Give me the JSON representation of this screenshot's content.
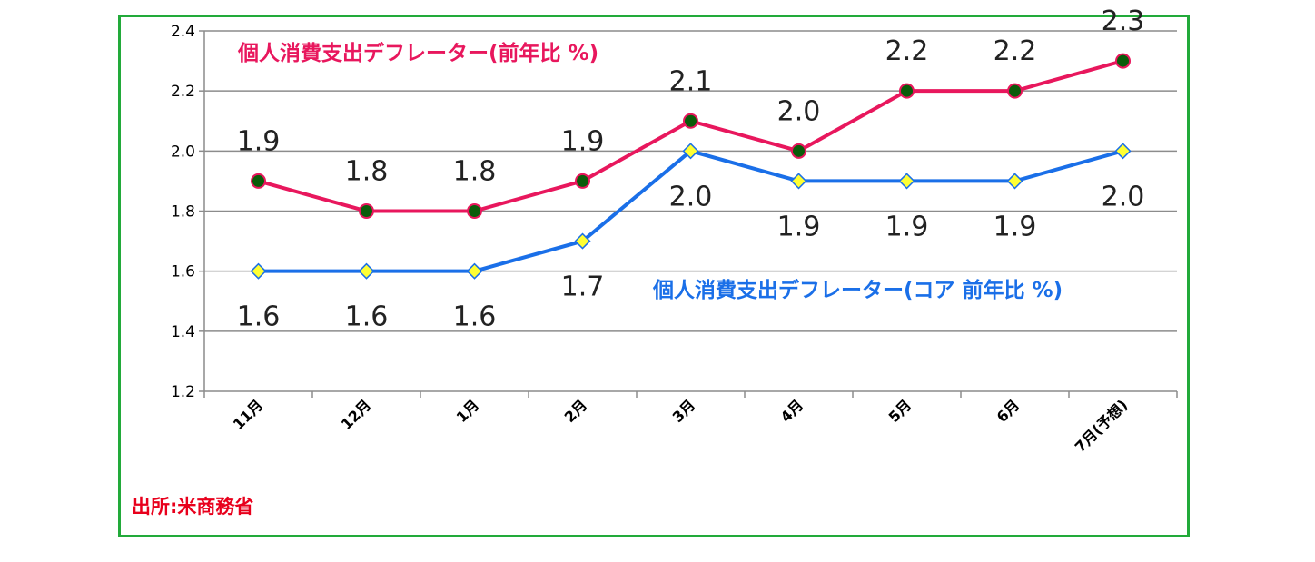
{
  "chart_data": {
    "type": "line",
    "categories": [
      "11月",
      "12月",
      "1月",
      "2月",
      "3月",
      "4月",
      "5月",
      "6月",
      "7月(予想)"
    ],
    "ylim": [
      1.2,
      2.4
    ],
    "yticks": [
      "1.2",
      "1.4",
      "1.6",
      "1.8",
      "2.0",
      "2.2",
      "2.4"
    ],
    "grid": true,
    "series": [
      {
        "name": "個人消費支出デフレーター(前年比 %)",
        "values": [
          1.9,
          1.8,
          1.8,
          1.9,
          2.1,
          2.0,
          2.2,
          2.2,
          2.3
        ],
        "labels": [
          "1.9",
          "1.8",
          "1.8",
          "1.9",
          "2.1",
          "2.0",
          "2.2",
          "2.2",
          "2.3"
        ],
        "color": "#e8175d",
        "marker": "circle",
        "marker_color": "#0a5c0a"
      },
      {
        "name": "個人消費支出デフレーター(コア 前年比 %)",
        "values": [
          1.6,
          1.6,
          1.6,
          1.7,
          2.0,
          1.9,
          1.9,
          1.9,
          2.0
        ],
        "labels": [
          "1.6",
          "1.6",
          "1.6",
          "1.7",
          "2.0",
          "1.9",
          "1.9",
          "1.9",
          "2.0"
        ],
        "color": "#1a6fe8",
        "marker": "diamond",
        "marker_color": "#ffff33"
      }
    ],
    "source": "出所:米商務省",
    "source_color": "#e8001c",
    "frame_color": "#22aa3a"
  }
}
